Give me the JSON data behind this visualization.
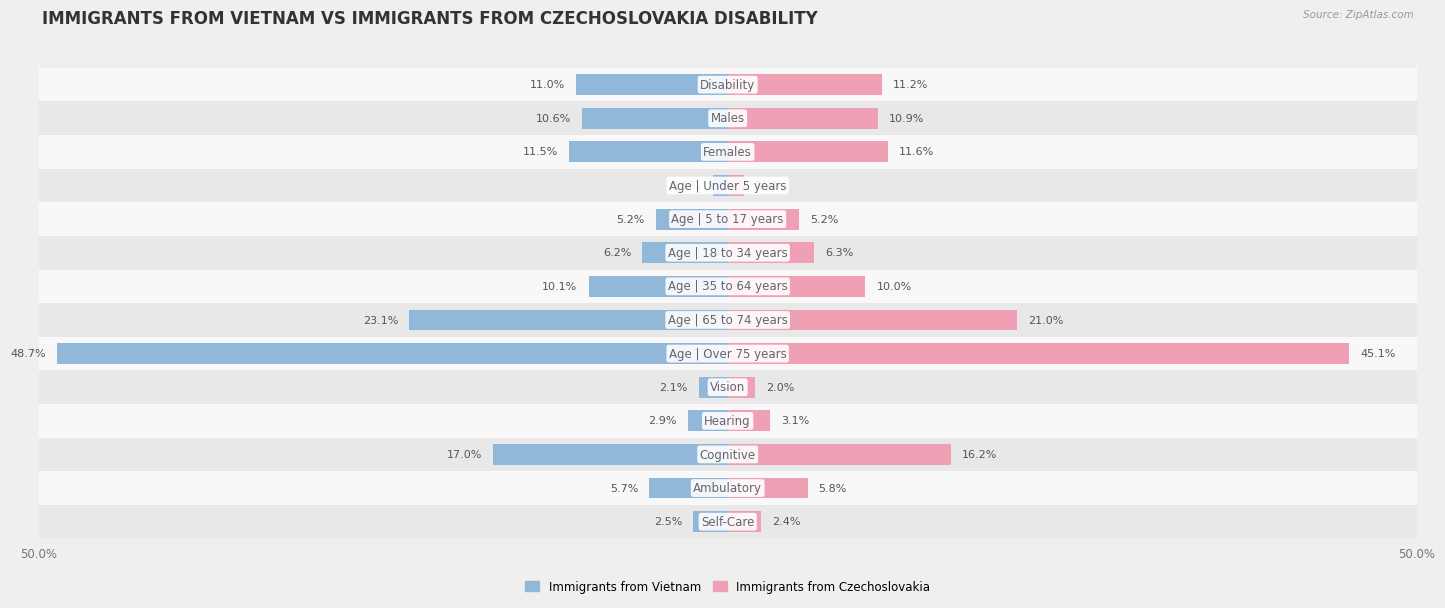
{
  "title": "IMMIGRANTS FROM VIETNAM VS IMMIGRANTS FROM CZECHOSLOVAKIA DISABILITY",
  "source": "Source: ZipAtlas.com",
  "categories": [
    "Disability",
    "Males",
    "Females",
    "Age | Under 5 years",
    "Age | 5 to 17 years",
    "Age | 18 to 34 years",
    "Age | 35 to 64 years",
    "Age | 65 to 74 years",
    "Age | Over 75 years",
    "Vision",
    "Hearing",
    "Cognitive",
    "Ambulatory",
    "Self-Care"
  ],
  "vietnam_values": [
    11.0,
    10.6,
    11.5,
    1.1,
    5.2,
    6.2,
    10.1,
    23.1,
    48.7,
    2.1,
    2.9,
    17.0,
    5.7,
    2.5
  ],
  "czech_values": [
    11.2,
    10.9,
    11.6,
    1.2,
    5.2,
    6.3,
    10.0,
    21.0,
    45.1,
    2.0,
    3.1,
    16.2,
    5.8,
    2.4
  ],
  "vietnam_color": "#91b8d8",
  "czech_color": "#f0a0b4",
  "background_color": "#efefef",
  "row_color_light": "#f8f8f8",
  "row_color_dark": "#e8e8e8",
  "axis_limit": 50.0,
  "legend_vietnam": "Immigrants from Vietnam",
  "legend_czech": "Immigrants from Czechoslovakia",
  "title_fontsize": 12,
  "label_fontsize": 8.5,
  "value_fontsize": 8.0,
  "bar_height": 0.62
}
